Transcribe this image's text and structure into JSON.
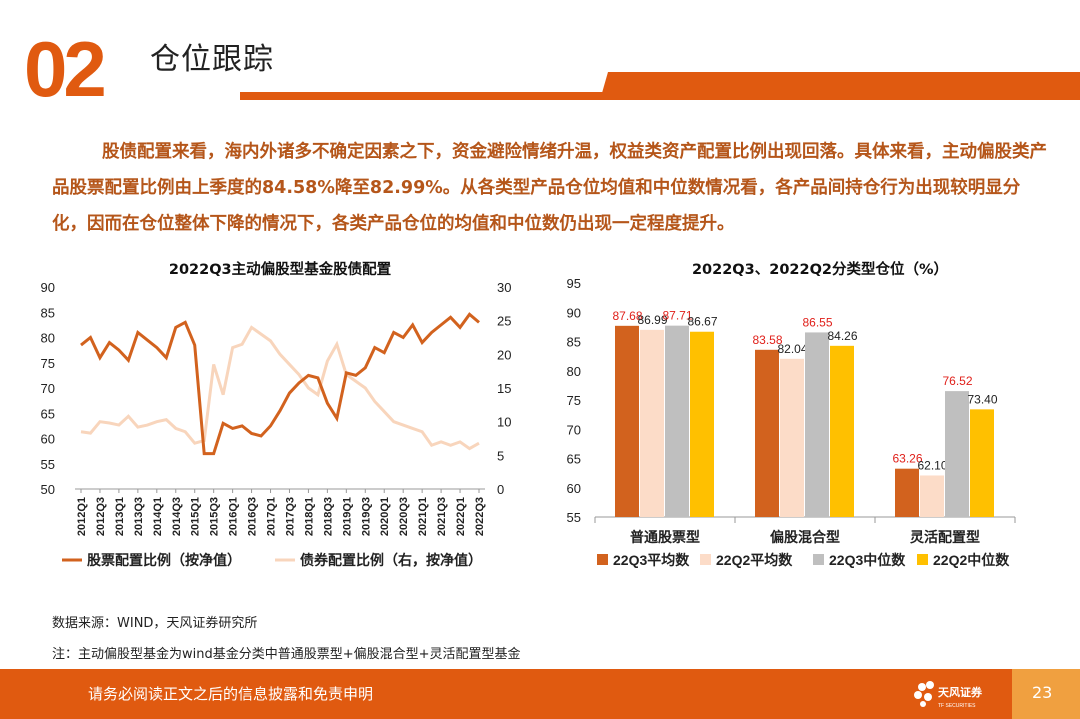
{
  "section": {
    "number": "02",
    "title": "仓位跟踪"
  },
  "paragraph": "股债配置来看，海内外诸多不确定因素之下，资金避险情绪升温，权益类资产配置比例出现回落。具体来看，主动偏股类产品股票配置比例由上季度的84.58%降至82.99%。从各类型产品仓位均值和中位数情况看，各产品间持仓行为出现较明显分化，因而在仓位整体下降的情况下，各类产品仓位的均值和中位数仍出现一定程度提升。",
  "colors": {
    "accent": "#e05a10",
    "stock_line": "#d2621e",
    "bond_line": "#f8d5bc",
    "bar1": "#d2621e",
    "bar2": "#fcdcc8",
    "bar3": "#bfbfbf",
    "bar4": "#ffc000",
    "label_red": "#e0201a"
  },
  "chart_data": [
    {
      "type": "line",
      "title": "2022Q3主动偏股型基金股债配置",
      "x": [
        "2012Q1",
        "2012Q2",
        "2012Q3",
        "2012Q4",
        "2013Q1",
        "2013Q2",
        "2013Q3",
        "2013Q4",
        "2014Q1",
        "2014Q2",
        "2014Q3",
        "2014Q4",
        "2015Q1",
        "2015Q2",
        "2015Q3",
        "2015Q4",
        "2016Q1",
        "2016Q2",
        "2016Q3",
        "2016Q4",
        "2017Q1",
        "2017Q2",
        "2017Q3",
        "2017Q4",
        "2018Q1",
        "2018Q2",
        "2018Q3",
        "2018Q4",
        "2019Q1",
        "2019Q2",
        "2019Q3",
        "2019Q4",
        "2020Q1",
        "2020Q2",
        "2020Q3",
        "2020Q4",
        "2021Q1",
        "2021Q2",
        "2021Q3",
        "2021Q4",
        "2022Q1",
        "2022Q2",
        "2022Q3"
      ],
      "xticks": [
        "2012Q1",
        "2012Q3",
        "2013Q1",
        "2013Q3",
        "2014Q1",
        "2014Q3",
        "2015Q1",
        "2015Q3",
        "2016Q1",
        "2016Q3",
        "2017Q1",
        "2017Q3",
        "2018Q1",
        "2018Q3",
        "2019Q1",
        "2019Q3",
        "2020Q1",
        "2020Q3",
        "2021Q1",
        "2021Q3",
        "2022Q1",
        "2022Q3"
      ],
      "ylim_left": [
        50,
        90
      ],
      "yticks_left": [
        50,
        55,
        60,
        65,
        70,
        75,
        80,
        85,
        90
      ],
      "ylim_right": [
        0,
        30
      ],
      "yticks_right": [
        0,
        5,
        10,
        15,
        20,
        25,
        30
      ],
      "series": [
        {
          "name": "股票配置比例（按净值）",
          "axis": "left",
          "values": [
            78.5,
            80,
            76,
            79,
            77.5,
            75.5,
            81,
            79.5,
            78,
            76,
            82,
            83,
            78.5,
            57,
            57,
            63,
            62,
            62.5,
            61,
            60.5,
            62.5,
            65.5,
            69,
            71,
            72.5,
            72,
            67,
            64,
            73,
            72.5,
            74,
            78,
            77,
            81,
            80,
            82.5,
            79,
            81,
            82.5,
            84,
            82,
            84.58,
            82.99
          ]
        },
        {
          "name": "债券配置比例（右，按净值）",
          "axis": "right",
          "values": [
            8.5,
            8.3,
            10,
            9.8,
            9.5,
            10.8,
            9.2,
            9.5,
            10,
            10.3,
            9,
            8.5,
            6.8,
            7.2,
            18.5,
            14,
            21,
            21.5,
            24,
            23,
            22,
            20,
            18.5,
            17,
            15,
            14,
            19,
            21.5,
            17,
            16,
            15,
            13,
            11.5,
            10,
            9.5,
            9,
            8.5,
            6.5,
            7,
            6.5,
            7,
            6,
            6.8
          ]
        }
      ]
    },
    {
      "type": "bar",
      "title": "2022Q3、2022Q2分类型仓位（%）",
      "categories": [
        "普通股票型",
        "偏股混合型",
        "灵活配置型"
      ],
      "ylim": [
        55,
        95
      ],
      "yticks": [
        55,
        60,
        65,
        70,
        75,
        80,
        85,
        90,
        95
      ],
      "series": [
        {
          "name": "22Q3平均数",
          "values": [
            87.68,
            83.58,
            63.26
          ],
          "labels": [
            "87.68",
            "83.58",
            "63.26"
          ]
        },
        {
          "name": "22Q2平均数",
          "values": [
            86.99,
            82.04,
            62.1
          ],
          "labels": [
            "86.99",
            "82.04",
            "62.10"
          ]
        },
        {
          "name": "22Q3中位数",
          "values": [
            87.71,
            86.55,
            76.52
          ],
          "labels": [
            "87.71",
            "86.55",
            "76.52"
          ]
        },
        {
          "name": "22Q2中位数",
          "values": [
            86.67,
            84.26,
            73.4
          ],
          "labels": [
            "86.67",
            "84.26",
            "73.40"
          ]
        }
      ]
    }
  ],
  "source_note": "数据来源：WIND，天风证券研究所",
  "footnote": "注：主动偏股型基金为wind基金分类中普通股票型+偏股混合型+灵活配置型基金",
  "footer": {
    "disclaimer": "请务必阅读正文之后的信息披露和免责申明",
    "logo_text": "天风证券",
    "logo_sub": "TF SECURITIES",
    "page": "23"
  }
}
